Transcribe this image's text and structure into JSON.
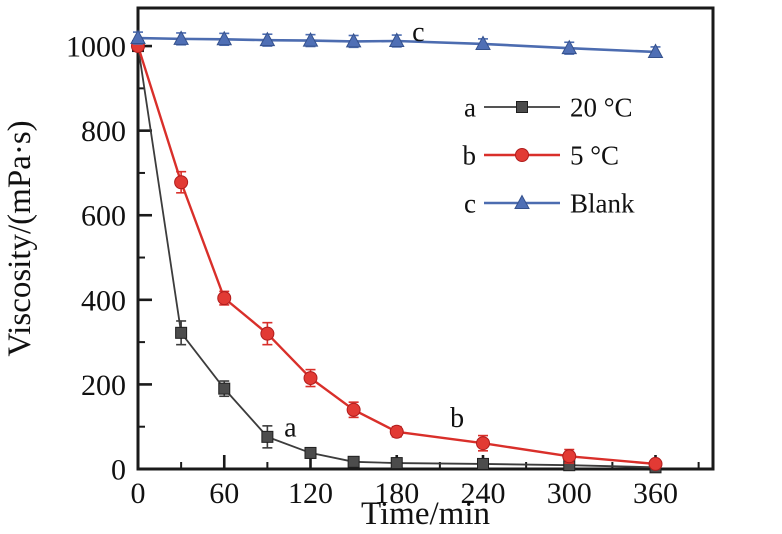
{
  "figure": {
    "background": "#ffffff",
    "frame_color": "#1a1a1a"
  },
  "chart_data": {
    "type": "line",
    "title": "",
    "xlabel": "Time/min",
    "ylabel": "Viscosity/(mPa·s)",
    "xlim": [
      0,
      400
    ],
    "ylim": [
      0,
      1090
    ],
    "grid": false,
    "legend_position": "inside-upper-right",
    "x_major_ticks": [
      0,
      60,
      120,
      180,
      240,
      300,
      360
    ],
    "x_minor_step": 30,
    "y_major_ticks": [
      0,
      200,
      400,
      600,
      800,
      1000
    ],
    "y_minor_step": 100,
    "x": [
      0,
      30,
      60,
      90,
      120,
      150,
      180,
      240,
      300,
      360
    ],
    "series": [
      {
        "id": "a",
        "name": "20 °C",
        "marker": "square",
        "color": "#3c3c3c",
        "marker_fill": "#4c4c4c",
        "marker_edge": "#1f1f1f",
        "line_width": 1.8,
        "values": [
          1000,
          322,
          190,
          76,
          38,
          17,
          14,
          12,
          9,
          4
        ],
        "errors": [
          0,
          28,
          18,
          26,
          12,
          10,
          10,
          8,
          6,
          3
        ]
      },
      {
        "id": "b",
        "name": "5 °C",
        "marker": "circle",
        "color": "#d92f2a",
        "marker_fill": "#e23a34",
        "marker_edge": "#b01c1c",
        "line_width": 2.4,
        "values": [
          1000,
          678,
          404,
          320,
          215,
          140,
          88,
          61,
          30,
          12
        ],
        "errors": [
          0,
          25,
          16,
          26,
          20,
          18,
          12,
          18,
          16,
          8
        ]
      },
      {
        "id": "c",
        "name": "Blank",
        "marker": "triangle",
        "color": "#4c6cb0",
        "marker_fill": "#4f6fb5",
        "marker_edge": "#35518c",
        "line_width": 2.6,
        "values": [
          1019,
          1017,
          1016,
          1014,
          1013,
          1011,
          1012,
          1005,
          995,
          986
        ],
        "errors": [
          14,
          14,
          14,
          14,
          14,
          14,
          14,
          12,
          14,
          12
        ]
      }
    ],
    "annotations": [
      {
        "text": "a",
        "x": 106,
        "y": 100
      },
      {
        "text": "b",
        "x": 222,
        "y": 123
      },
      {
        "text": "c",
        "x": 195,
        "y": 1035
      }
    ]
  },
  "legend": {
    "entries": [
      {
        "key": "a",
        "label": "20 °C"
      },
      {
        "key": "b",
        "label": "5 °C"
      },
      {
        "key": "c",
        "label": "Blank"
      }
    ]
  }
}
